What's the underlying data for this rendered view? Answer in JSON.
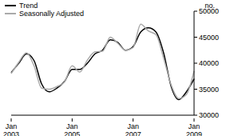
{
  "chart_data": {
    "type": "line",
    "y_label": "no.",
    "categories": [
      "Jan 2003",
      null,
      null,
      null,
      null,
      null,
      null,
      null,
      "Jan 2005",
      null,
      null,
      null,
      null,
      null,
      null,
      null,
      "Jan 2007",
      null,
      null,
      null,
      null,
      null,
      null,
      null,
      "Jan 2009"
    ],
    "series": [
      {
        "name": "Trend",
        "color": "#000000",
        "values": [
          38200,
          40000,
          41800,
          40500,
          36000,
          34500,
          35200,
          36500,
          38800,
          38800,
          40000,
          41800,
          42500,
          44500,
          44000,
          42500,
          43200,
          46000,
          46800,
          46000,
          42000,
          35500,
          33000,
          34500,
          37000
        ]
      },
      {
        "name": "Seasonally Adjusted",
        "color": "#aaaaaa",
        "values": [
          38000,
          40200,
          42000,
          39500,
          35200,
          35000,
          35500,
          36400,
          39500,
          38300,
          40600,
          42200,
          42300,
          45000,
          43800,
          42500,
          43000,
          47500,
          46200,
          45500,
          41000,
          35800,
          33200,
          34000,
          38500
        ]
      }
    ],
    "ylim": [
      30000,
      50000
    ],
    "yticks": [
      30000,
      35000,
      40000,
      45000,
      50000
    ],
    "legend": "upper left"
  }
}
